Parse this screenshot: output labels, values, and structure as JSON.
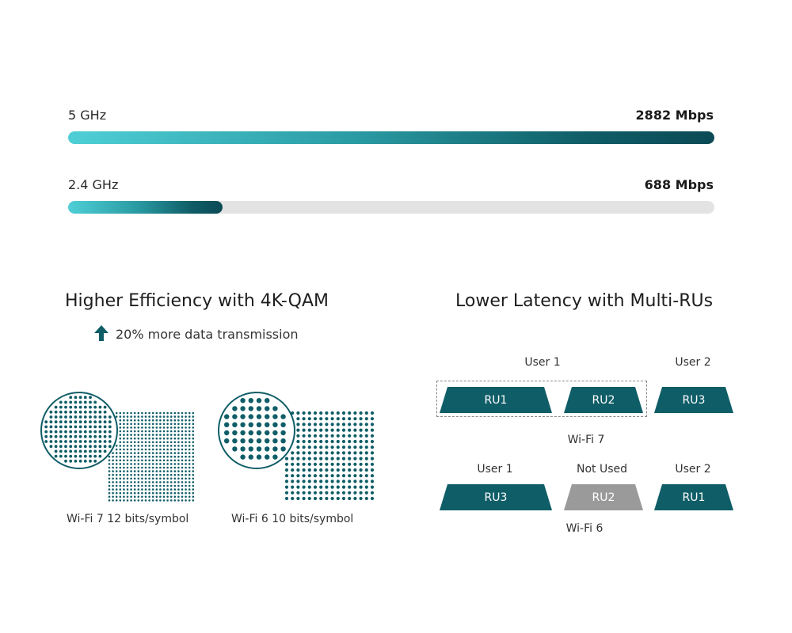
{
  "bands": [
    {
      "label": "5 GHz",
      "value_text": "2882 Mbps",
      "fraction": 1.0
    },
    {
      "label": "2.4 GHz",
      "value_text": "688 Mbps",
      "fraction": 0.2387
    }
  ],
  "left": {
    "title": "Higher Efficiency with 4K-QAM",
    "note": "20% more data transmission",
    "diagrams": [
      {
        "caption": "Wi-Fi 7 12 bits/symbol"
      },
      {
        "caption": "Wi-Fi 6 10 bits/symbol"
      }
    ]
  },
  "right": {
    "title": "Lower Latency with Multi-RUs",
    "wifi7": {
      "caption": "Wi-Fi 7",
      "user1": "User 1",
      "user2": "User 2",
      "blocks": [
        "RU1",
        "RU2",
        "RU3"
      ]
    },
    "wifi6": {
      "caption": "Wi-Fi 6",
      "user1": "User 1",
      "not_used": "Not Used",
      "user2": "User 2",
      "blocks": [
        "RU3",
        "RU2",
        "RU1"
      ]
    }
  },
  "colors": {
    "teal_dark": "#0f5d67",
    "teal_light": "#4fcfd6",
    "track_gray": "#e3e3e3",
    "unused_gray": "#9a9a9a"
  }
}
